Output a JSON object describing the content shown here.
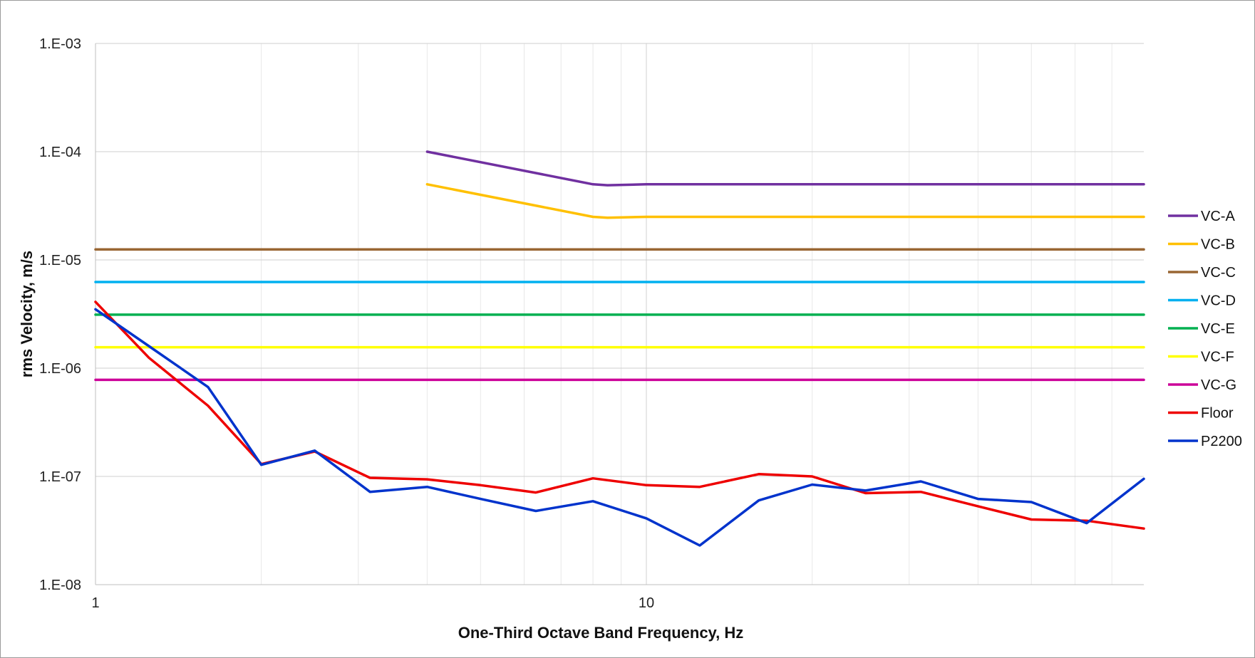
{
  "chart_data": {
    "type": "line",
    "title": "",
    "xlabel": "One-Third Octave Band Frequency, Hz",
    "ylabel": "rms Velocity, m/s",
    "x_scale": "log",
    "y_scale": "log",
    "xlim": [
      1,
      80
    ],
    "ylim": [
      1e-08,
      0.001
    ],
    "x_ticks": [
      {
        "value": 1,
        "label": "1"
      },
      {
        "value": 10,
        "label": "10"
      }
    ],
    "y_ticks": [
      {
        "value": 1e-08,
        "label": "1.E-08"
      },
      {
        "value": 1e-07,
        "label": "1.E-07"
      },
      {
        "value": 1e-06,
        "label": "1.E-06"
      },
      {
        "value": 1e-05,
        "label": "1.E-05"
      },
      {
        "value": 0.0001,
        "label": "1.E-04"
      },
      {
        "value": 0.001,
        "label": "1.E-03"
      }
    ],
    "grid": true,
    "legend_position": "right",
    "series": [
      {
        "name": "VC-A",
        "color": "#7030A0",
        "x": [
          4,
          8,
          8.5,
          10,
          80
        ],
        "y": [
          0.0001,
          5e-05,
          4.9e-05,
          5e-05,
          5e-05
        ]
      },
      {
        "name": "VC-B",
        "color": "#FFC000",
        "x": [
          4,
          8,
          8.5,
          10,
          80
        ],
        "y": [
          5e-05,
          2.5e-05,
          2.45e-05,
          2.5e-05,
          2.5e-05
        ]
      },
      {
        "name": "VC-C",
        "color": "#996633",
        "x": [
          1,
          80
        ],
        "y": [
          1.25e-05,
          1.25e-05
        ]
      },
      {
        "name": "VC-D",
        "color": "#00B0F0",
        "x": [
          1,
          80
        ],
        "y": [
          6.25e-06,
          6.25e-06
        ]
      },
      {
        "name": "VC-E",
        "color": "#00B050",
        "x": [
          1,
          80
        ],
        "y": [
          3.12e-06,
          3.12e-06
        ]
      },
      {
        "name": "VC-F",
        "color": "#FFFF00",
        "x": [
          1,
          80
        ],
        "y": [
          1.56e-06,
          1.56e-06
        ]
      },
      {
        "name": "VC-G",
        "color": "#CC0099",
        "x": [
          1,
          80
        ],
        "y": [
          7.8e-07,
          7.8e-07
        ]
      },
      {
        "name": "Floor",
        "color": "#EE0000",
        "x": [
          1,
          1.25,
          1.6,
          2,
          2.5,
          3.15,
          4,
          5,
          6.3,
          8,
          10,
          12.5,
          16,
          20,
          25,
          31.5,
          40,
          50,
          63,
          80
        ],
        "y": [
          4.1e-06,
          1.25e-06,
          4.5e-07,
          1.3e-07,
          1.7e-07,
          9.7e-08,
          9.4e-08,
          8.3e-08,
          7.1e-08,
          9.6e-08,
          8.3e-08,
          8e-08,
          1.05e-07,
          1e-07,
          7e-08,
          7.2e-08,
          5.3e-08,
          4e-08,
          3.9e-08,
          3.3e-08
        ]
      },
      {
        "name": "P2200",
        "color": "#0033CC",
        "x": [
          1,
          1.25,
          1.6,
          2,
          2.5,
          3.15,
          4,
          5,
          6.3,
          8,
          10,
          12.5,
          16,
          20,
          25,
          31.5,
          40,
          50,
          63,
          80
        ],
        "y": [
          3.5e-06,
          1.6e-06,
          6.7e-07,
          1.28e-07,
          1.73e-07,
          7.2e-08,
          8e-08,
          6.2e-08,
          4.8e-08,
          5.9e-08,
          4.1e-08,
          2.3e-08,
          6e-08,
          8.4e-08,
          7.4e-08,
          9e-08,
          6.2e-08,
          5.8e-08,
          3.7e-08,
          9.5e-08
        ]
      }
    ]
  }
}
